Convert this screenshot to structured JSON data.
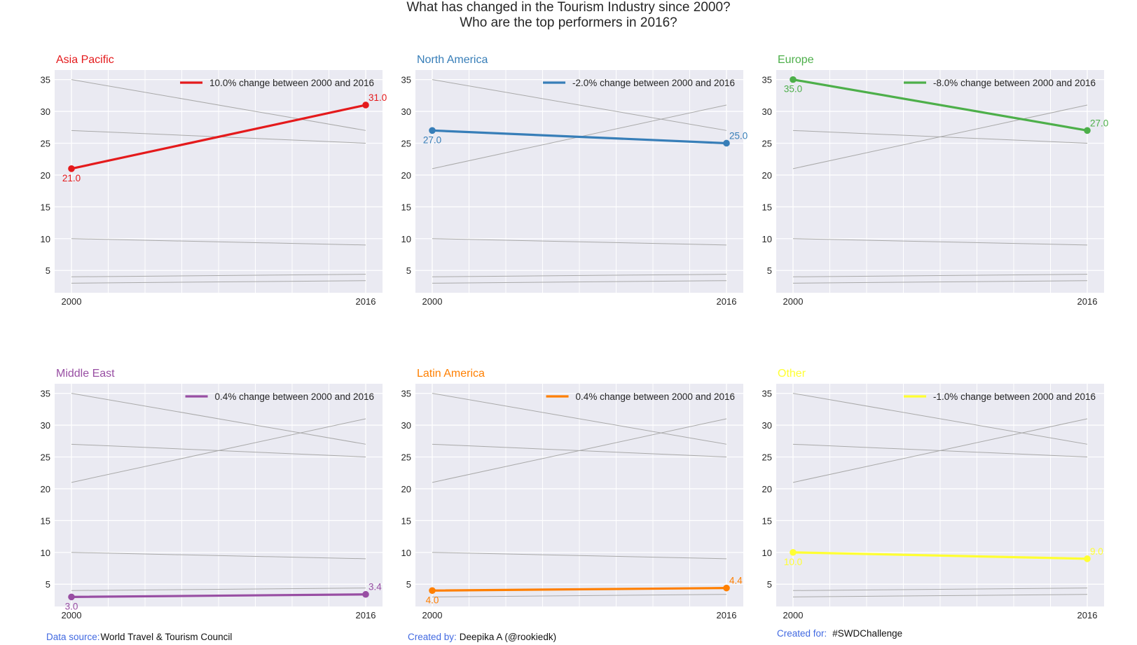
{
  "page": {
    "title_line1": "What has changed in the Tourism Industry since 2000?",
    "title_line2": "Who are the top performers in 2016?"
  },
  "footer": {
    "source_label": "Data source:",
    "source_value": "World Travel & Tourism Council",
    "creator_label": "Created by:",
    "creator_value": "Deepika A (@rookiedk)",
    "for_label": "Created for:",
    "for_value": "#SWDChallenge"
  },
  "colors": {
    "Asia Pacific": "#e41a1c",
    "North America": "#377eb8",
    "Europe": "#4daf4a",
    "Middle East": "#984ea3",
    "Latin America": "#ff7f00",
    "Other": "#ffff33",
    "background_lines": "#a9a9a9",
    "axes_face": "#eaeaf2"
  },
  "chart_data": {
    "type": "line",
    "x": [
      2000,
      2016
    ],
    "x_tick_labels": [
      "2000",
      "2016"
    ],
    "y_ticks": [
      5,
      10,
      15,
      20,
      25,
      30,
      35
    ],
    "ylim": [
      1.5,
      36.5
    ],
    "grid": true,
    "legend_placement": "upper right",
    "series": [
      {
        "name": "Asia Pacific",
        "values": [
          21.0,
          31.0
        ],
        "point_labels": [
          "21.0",
          "31.0"
        ],
        "legend": "10.0% change between 2000 and 2016"
      },
      {
        "name": "North America",
        "values": [
          27.0,
          25.0
        ],
        "point_labels": [
          "27.0",
          "25.0"
        ],
        "legend": "-2.0% change between 2000 and 2016"
      },
      {
        "name": "Europe",
        "values": [
          35.0,
          27.0
        ],
        "point_labels": [
          "35.0",
          "27.0"
        ],
        "legend": "-8.0% change between 2000 and 2016"
      },
      {
        "name": "Middle East",
        "values": [
          3.0,
          3.4
        ],
        "point_labels": [
          "3.0",
          "3.4"
        ],
        "legend": "0.4% change between 2000 and 2016"
      },
      {
        "name": "Latin America",
        "values": [
          4.0,
          4.4
        ],
        "point_labels": [
          "4.0",
          "4.4"
        ],
        "legend": "0.4% change between 2000 and 2016"
      },
      {
        "name": "Other",
        "values": [
          10.0,
          9.0
        ],
        "point_labels": [
          "10.0",
          "9.0"
        ],
        "legend": "-1.0% change between 2000 and 2016"
      }
    ]
  }
}
